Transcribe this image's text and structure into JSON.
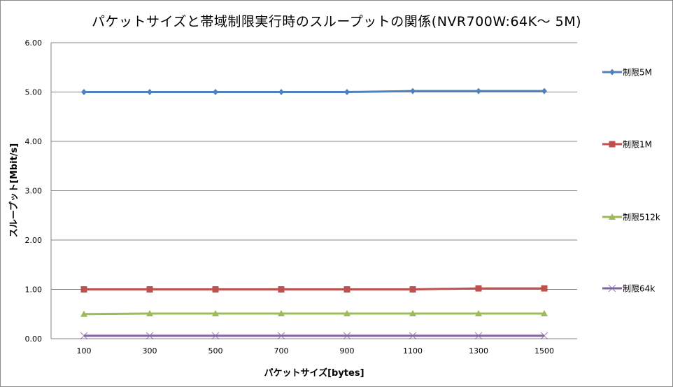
{
  "chart_data": {
    "type": "line",
    "title": "パケットサイズと帯域制限実行時のスループットの関係(NVR700W:64K～ 5M)",
    "xlabel": "パケットサイズ[bytes]",
    "ylabel": "スループット[Mbit/s]",
    "categories": [
      "100",
      "300",
      "500",
      "700",
      "900",
      "1100",
      "1300",
      "1500"
    ],
    "ylim": [
      0,
      6
    ],
    "yticks": [
      "0.00",
      "1.00",
      "2.00",
      "3.00",
      "4.00",
      "5.00",
      "6.00"
    ],
    "grid": true,
    "legend_position": "right",
    "series": [
      {
        "name": "制限5M",
        "color": "#4f81bd",
        "marker": "diamond",
        "values": [
          5.0,
          5.0,
          5.0,
          5.0,
          5.0,
          5.02,
          5.02,
          5.02
        ]
      },
      {
        "name": "制限1M",
        "color": "#c0504d",
        "marker": "square",
        "values": [
          1.0,
          1.0,
          1.0,
          1.0,
          1.0,
          1.0,
          1.02,
          1.02
        ]
      },
      {
        "name": "制限512k",
        "color": "#9bbb59",
        "marker": "triangle",
        "values": [
          0.5,
          0.51,
          0.51,
          0.51,
          0.51,
          0.51,
          0.51,
          0.51
        ]
      },
      {
        "name": "制限64k",
        "color": "#8064a2",
        "marker": "x",
        "values": [
          0.06,
          0.06,
          0.06,
          0.06,
          0.06,
          0.06,
          0.06,
          0.06
        ]
      }
    ]
  }
}
